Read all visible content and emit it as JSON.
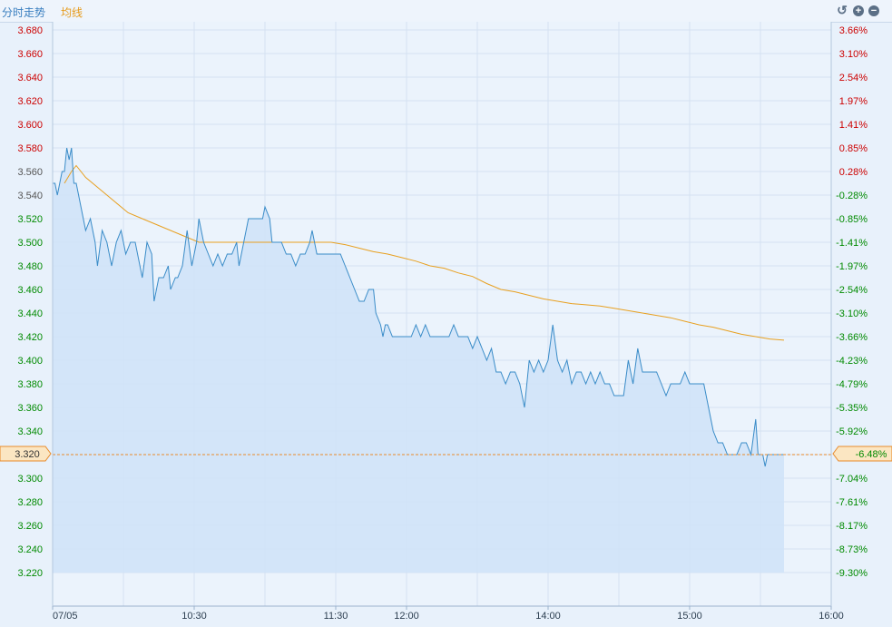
{
  "header": {
    "tab_intraday": "分时走势",
    "tab_average": "均线",
    "controls": [
      "undo-icon",
      "zoom-in-icon",
      "zoom-out-icon"
    ]
  },
  "colors": {
    "price_line": "#3a8cc8",
    "average_line": "#e8a020",
    "area_fill": "#cfe2f8",
    "up_label": "#cc0000",
    "down_label": "#008a00",
    "grid": "#d4e2f2",
    "ref_line": "#e88a2a"
  },
  "chart_data": {
    "type": "line",
    "date": "07/05",
    "ylim": [
      3.2,
      3.69
    ],
    "y_ticks": [
      "3.680",
      "3.660",
      "3.640",
      "3.620",
      "3.600",
      "3.580",
      "3.560",
      "3.540",
      "3.520",
      "3.500",
      "3.480",
      "3.460",
      "3.440",
      "3.420",
      "3.400",
      "3.380",
      "3.360",
      "3.340",
      "3.320",
      "3.300",
      "3.280",
      "3.260",
      "3.240",
      "3.220"
    ],
    "y_tick_values": [
      3.68,
      3.66,
      3.64,
      3.62,
      3.6,
      3.58,
      3.56,
      3.54,
      3.52,
      3.5,
      3.48,
      3.46,
      3.44,
      3.42,
      3.4,
      3.38,
      3.36,
      3.34,
      3.32,
      3.3,
      3.28,
      3.26,
      3.24,
      3.22
    ],
    "pct_ticks": [
      "3.66%",
      "3.10%",
      "2.54%",
      "1.97%",
      "1.41%",
      "0.85%",
      "0.28%",
      "-0.28%",
      "-0.85%",
      "-1.41%",
      "-1.97%",
      "-2.54%",
      "-3.10%",
      "-3.66%",
      "-4.23%",
      "-4.79%",
      "-5.35%",
      "-5.92%",
      "-6.48%",
      "-7.04%",
      "-7.61%",
      "-8.17%",
      "-8.73%",
      "-9.30%"
    ],
    "x_ticks": [
      {
        "label": "07/05",
        "minute": 0
      },
      {
        "label": "10:30",
        "minute": 60
      },
      {
        "label": "11:30",
        "minute": 120
      },
      {
        "label": "12:00",
        "minute": 150
      },
      {
        "label": "14:00",
        "minute": 210
      },
      {
        "label": "15:00",
        "minute": 270
      },
      {
        "label": "16:00",
        "minute": 330
      }
    ],
    "x_range_minutes": [
      0,
      330
    ],
    "current_price": "3.320",
    "current_pct": "-6.48%",
    "series": [
      {
        "role": "price",
        "points": [
          [
            0,
            3.55
          ],
          [
            1,
            3.55
          ],
          [
            2,
            3.54
          ],
          [
            3,
            3.55
          ],
          [
            4,
            3.56
          ],
          [
            5,
            3.56
          ],
          [
            6,
            3.58
          ],
          [
            7,
            3.57
          ],
          [
            8,
            3.58
          ],
          [
            9,
            3.55
          ],
          [
            10,
            3.55
          ],
          [
            11,
            3.54
          ],
          [
            12,
            3.53
          ],
          [
            14,
            3.51
          ],
          [
            16,
            3.52
          ],
          [
            18,
            3.5
          ],
          [
            19,
            3.48
          ],
          [
            21,
            3.51
          ],
          [
            23,
            3.5
          ],
          [
            25,
            3.48
          ],
          [
            27,
            3.5
          ],
          [
            29,
            3.51
          ],
          [
            31,
            3.49
          ],
          [
            33,
            3.5
          ],
          [
            35,
            3.5
          ],
          [
            37,
            3.48
          ],
          [
            38,
            3.47
          ],
          [
            40,
            3.5
          ],
          [
            42,
            3.49
          ],
          [
            43,
            3.45
          ],
          [
            45,
            3.47
          ],
          [
            47,
            3.47
          ],
          [
            49,
            3.48
          ],
          [
            50,
            3.46
          ],
          [
            52,
            3.47
          ],
          [
            53,
            3.47
          ],
          [
            55,
            3.48
          ],
          [
            57,
            3.51
          ],
          [
            59,
            3.48
          ],
          [
            61,
            3.5
          ],
          [
            62,
            3.52
          ],
          [
            64,
            3.5
          ],
          [
            66,
            3.49
          ],
          [
            68,
            3.48
          ],
          [
            70,
            3.49
          ],
          [
            72,
            3.48
          ],
          [
            74,
            3.49
          ],
          [
            76,
            3.49
          ],
          [
            78,
            3.5
          ],
          [
            79,
            3.48
          ],
          [
            81,
            3.5
          ],
          [
            83,
            3.52
          ],
          [
            85,
            3.52
          ],
          [
            87,
            3.52
          ],
          [
            89,
            3.52
          ],
          [
            90,
            3.53
          ],
          [
            92,
            3.52
          ],
          [
            93,
            3.5
          ],
          [
            95,
            3.5
          ],
          [
            97,
            3.5
          ],
          [
            99,
            3.49
          ],
          [
            101,
            3.49
          ],
          [
            103,
            3.48
          ],
          [
            105,
            3.49
          ],
          [
            107,
            3.49
          ],
          [
            109,
            3.5
          ],
          [
            110,
            3.51
          ],
          [
            112,
            3.49
          ],
          [
            114,
            3.49
          ],
          [
            116,
            3.49
          ],
          [
            118,
            3.49
          ],
          [
            120,
            3.49
          ],
          [
            122,
            3.49
          ],
          [
            124,
            3.48
          ],
          [
            126,
            3.47
          ],
          [
            128,
            3.46
          ],
          [
            130,
            3.45
          ],
          [
            132,
            3.45
          ],
          [
            134,
            3.46
          ],
          [
            136,
            3.46
          ],
          [
            137,
            3.44
          ],
          [
            139,
            3.43
          ],
          [
            140,
            3.42
          ],
          [
            141,
            3.43
          ],
          [
            142,
            3.43
          ],
          [
            144,
            3.42
          ],
          [
            146,
            3.42
          ],
          [
            148,
            3.42
          ],
          [
            150,
            3.42
          ],
          [
            152,
            3.42
          ],
          [
            154,
            3.43
          ],
          [
            156,
            3.42
          ],
          [
            158,
            3.43
          ],
          [
            160,
            3.42
          ],
          [
            162,
            3.42
          ],
          [
            164,
            3.42
          ],
          [
            166,
            3.42
          ],
          [
            168,
            3.42
          ],
          [
            170,
            3.43
          ],
          [
            172,
            3.42
          ],
          [
            174,
            3.42
          ],
          [
            176,
            3.42
          ],
          [
            178,
            3.41
          ],
          [
            180,
            3.42
          ],
          [
            182,
            3.41
          ],
          [
            184,
            3.4
          ],
          [
            186,
            3.41
          ],
          [
            188,
            3.39
          ],
          [
            190,
            3.39
          ],
          [
            192,
            3.38
          ],
          [
            194,
            3.39
          ],
          [
            196,
            3.39
          ],
          [
            198,
            3.38
          ],
          [
            200,
            3.36
          ],
          [
            202,
            3.4
          ],
          [
            204,
            3.39
          ],
          [
            206,
            3.4
          ],
          [
            208,
            3.39
          ],
          [
            210,
            3.4
          ],
          [
            212,
            3.43
          ],
          [
            214,
            3.4
          ],
          [
            216,
            3.39
          ],
          [
            218,
            3.4
          ],
          [
            220,
            3.38
          ],
          [
            222,
            3.39
          ],
          [
            224,
            3.39
          ],
          [
            226,
            3.38
          ],
          [
            228,
            3.39
          ],
          [
            230,
            3.38
          ],
          [
            232,
            3.39
          ],
          [
            234,
            3.38
          ],
          [
            236,
            3.38
          ],
          [
            238,
            3.37
          ],
          [
            240,
            3.37
          ],
          [
            242,
            3.37
          ],
          [
            244,
            3.4
          ],
          [
            246,
            3.38
          ],
          [
            248,
            3.41
          ],
          [
            250,
            3.39
          ],
          [
            252,
            3.39
          ],
          [
            254,
            3.39
          ],
          [
            256,
            3.39
          ],
          [
            258,
            3.38
          ],
          [
            260,
            3.37
          ],
          [
            262,
            3.38
          ],
          [
            264,
            3.38
          ],
          [
            266,
            3.38
          ],
          [
            268,
            3.39
          ],
          [
            270,
            3.38
          ],
          [
            272,
            3.38
          ],
          [
            274,
            3.38
          ],
          [
            276,
            3.38
          ],
          [
            278,
            3.36
          ],
          [
            280,
            3.34
          ],
          [
            282,
            3.33
          ],
          [
            284,
            3.33
          ],
          [
            286,
            3.32
          ],
          [
            288,
            3.32
          ],
          [
            290,
            3.32
          ],
          [
            292,
            3.33
          ],
          [
            294,
            3.33
          ],
          [
            296,
            3.32
          ],
          [
            298,
            3.35
          ],
          [
            299,
            3.32
          ],
          [
            301,
            3.32
          ],
          [
            302,
            3.31
          ],
          [
            303,
            3.32
          ],
          [
            305,
            3.32
          ],
          [
            307,
            3.32
          ],
          [
            309,
            3.32
          ],
          [
            310,
            3.32
          ]
        ]
      },
      {
        "role": "average",
        "points": [
          [
            5,
            3.55
          ],
          [
            8,
            3.56
          ],
          [
            10,
            3.565
          ],
          [
            14,
            3.555
          ],
          [
            20,
            3.545
          ],
          [
            26,
            3.535
          ],
          [
            32,
            3.525
          ],
          [
            38,
            3.52
          ],
          [
            44,
            3.515
          ],
          [
            50,
            3.51
          ],
          [
            56,
            3.505
          ],
          [
            62,
            3.5
          ],
          [
            70,
            3.5
          ],
          [
            80,
            3.5
          ],
          [
            90,
            3.5
          ],
          [
            100,
            3.5
          ],
          [
            110,
            3.5
          ],
          [
            118,
            3.5
          ],
          [
            124,
            3.498
          ],
          [
            130,
            3.495
          ],
          [
            136,
            3.492
          ],
          [
            142,
            3.49
          ],
          [
            148,
            3.487
          ],
          [
            154,
            3.484
          ],
          [
            160,
            3.48
          ],
          [
            166,
            3.478
          ],
          [
            172,
            3.474
          ],
          [
            178,
            3.471
          ],
          [
            184,
            3.465
          ],
          [
            190,
            3.46
          ],
          [
            196,
            3.458
          ],
          [
            202,
            3.455
          ],
          [
            208,
            3.452
          ],
          [
            214,
            3.45
          ],
          [
            220,
            3.448
          ],
          [
            226,
            3.447
          ],
          [
            232,
            3.446
          ],
          [
            238,
            3.444
          ],
          [
            244,
            3.442
          ],
          [
            250,
            3.44
          ],
          [
            256,
            3.438
          ],
          [
            262,
            3.436
          ],
          [
            268,
            3.433
          ],
          [
            274,
            3.43
          ],
          [
            280,
            3.428
          ],
          [
            286,
            3.425
          ],
          [
            292,
            3.422
          ],
          [
            298,
            3.42
          ],
          [
            304,
            3.418
          ],
          [
            310,
            3.417
          ]
        ]
      }
    ]
  }
}
